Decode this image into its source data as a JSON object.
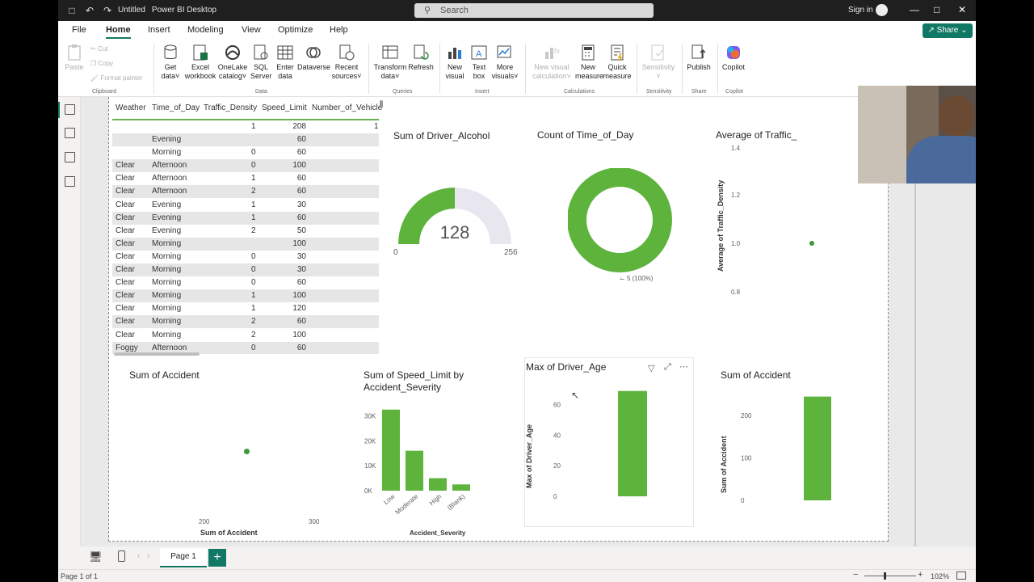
{
  "titlebar": {
    "doc_title": "Untitled",
    "app_name": "Power BI Desktop",
    "search_placeholder": "Search",
    "signin": "Sign in"
  },
  "menu": {
    "tabs": [
      "File",
      "Home",
      "Insert",
      "Modeling",
      "View",
      "Optimize",
      "Help"
    ],
    "active": "Home",
    "share": "Share"
  },
  "ribbon": {
    "clipboard": {
      "paste": "Paste",
      "cut": "Cut",
      "copy": "Copy",
      "format_painter": "Format painter",
      "group": "Clipboard"
    },
    "data": {
      "get_data": [
        "Get",
        "data"
      ],
      "excel": [
        "Excel",
        "workbook"
      ],
      "onelake": [
        "OneLake",
        "catalog"
      ],
      "sql": [
        "SQL",
        "Server"
      ],
      "enter": [
        "Enter",
        "data"
      ],
      "dataverse": [
        "Dataverse",
        ""
      ],
      "recent": [
        "Recent",
        "sources"
      ],
      "group": "Data"
    },
    "queries": {
      "transform": [
        "Transform",
        "data"
      ],
      "refresh": [
        "Refresh",
        ""
      ],
      "group": "Queries"
    },
    "insert": {
      "new_visual": [
        "New",
        "visual"
      ],
      "text_box": [
        "Text",
        "box"
      ],
      "more_visuals": [
        "More",
        "visuals"
      ],
      "group": "Insert"
    },
    "calculations": {
      "new_visual_calc": [
        "New visual",
        "calculation"
      ],
      "new_measure": [
        "New",
        "measure"
      ],
      "quick_measure": [
        "Quick",
        "measure"
      ],
      "group": "Calculations"
    },
    "sensitivity": {
      "label": "Sensitivity",
      "group": "Sensitivity"
    },
    "share": {
      "publish": "Publish",
      "group": "Share"
    },
    "copilot": {
      "label": "Copilot",
      "group": "Copilot"
    }
  },
  "table": {
    "headers": [
      "Weather",
      "Time_of_Day",
      "Traffic_Density",
      "Speed_Limit",
      "Number_of_Vehicle"
    ],
    "first_row": {
      "density": "1",
      "speed": "208",
      "vehicles": "1"
    },
    "rows": [
      [
        "",
        "Evening",
        "",
        "60"
      ],
      [
        "",
        "Morning",
        "0",
        "60"
      ],
      [
        "Clear",
        "Afternoon",
        "0",
        "100"
      ],
      [
        "Clear",
        "Afternoon",
        "1",
        "60"
      ],
      [
        "Clear",
        "Afternoon",
        "2",
        "60"
      ],
      [
        "Clear",
        "Evening",
        "1",
        "30"
      ],
      [
        "Clear",
        "Evening",
        "1",
        "60"
      ],
      [
        "Clear",
        "Evening",
        "2",
        "50"
      ],
      [
        "Clear",
        "Morning",
        "",
        "100"
      ],
      [
        "Clear",
        "Morning",
        "0",
        "30"
      ],
      [
        "Clear",
        "Morning",
        "0",
        "30"
      ],
      [
        "Clear",
        "Morning",
        "0",
        "60"
      ],
      [
        "Clear",
        "Morning",
        "1",
        "100"
      ],
      [
        "Clear",
        "Morning",
        "1",
        "120"
      ],
      [
        "Clear",
        "Morning",
        "2",
        "60"
      ],
      [
        "Clear",
        "Morning",
        "2",
        "100"
      ],
      [
        "Foggy",
        "Afternoon",
        "0",
        "60"
      ]
    ]
  },
  "visuals": {
    "gauge": {
      "title": "Sum of Driver_Alcohol",
      "value": "128",
      "min": "0",
      "max": "256",
      "fraction": 0.5
    },
    "donut": {
      "title": "Count of Time_of_Day",
      "label": "5 (100%)"
    },
    "scatter_traffic": {
      "title": "Average of Traffic_",
      "ylabel": "Average of Traffic_Density",
      "ticks": [
        "1.4",
        "1.2",
        "1.0",
        "0.8"
      ],
      "point_y": 1.0
    },
    "scatter_accident": {
      "title": "Sum of Accident",
      "xlabel": "Sum of Accident",
      "xticks": [
        "200",
        "300"
      ]
    },
    "bar_speed": {
      "title_line1": "Sum of Speed_Limit by",
      "title_line2": "Accident_Severity",
      "xlabel": "Accident_Severity",
      "yticks": [
        "30K",
        "20K",
        "10K",
        "0K"
      ]
    },
    "bar_age": {
      "title": "Max of Driver_Age",
      "ylabel": "Max of Driver_Age",
      "yticks": [
        "60",
        "40",
        "20",
        "0"
      ]
    },
    "bar_accident": {
      "title": "Sum of Accident",
      "ylabel": "Sum of Accident",
      "yticks": [
        "200",
        "100",
        "0"
      ]
    }
  },
  "chart_data": [
    {
      "type": "bar",
      "title": "Sum of Speed_Limit by Accident_Severity",
      "categories": [
        "Low",
        "Moderate",
        "High",
        "(Blank)"
      ],
      "values": [
        32500,
        16000,
        5000,
        2500
      ],
      "xlabel": "Accident_Severity",
      "ylabel": "",
      "ylim": [
        0,
        35000
      ]
    },
    {
      "type": "bar",
      "title": "Max of Driver_Age",
      "categories": [
        ""
      ],
      "values": [
        69
      ],
      "ylabel": "Max of Driver_Age",
      "ylim": [
        0,
        72
      ]
    },
    {
      "type": "bar",
      "title": "Sum of Accident",
      "categories": [
        ""
      ],
      "values": [
        245
      ],
      "ylabel": "Sum of Accident",
      "ylim": [
        0,
        250
      ]
    }
  ],
  "pages": {
    "tab": "Page 1",
    "status": "Page 1 of 1",
    "zoom": "102%"
  },
  "colors": {
    "accent": "#117865",
    "chart_green": "#5db33c",
    "gauge_bg": "#e8e6ef"
  }
}
